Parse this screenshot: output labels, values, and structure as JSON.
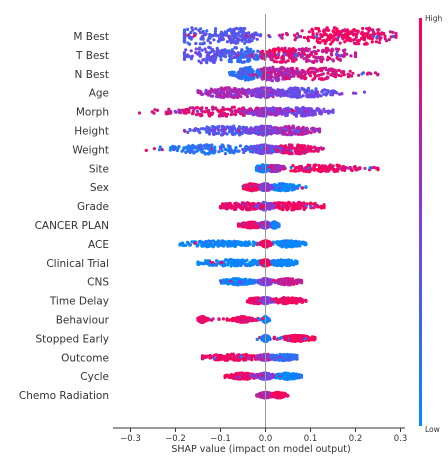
{
  "chart_data": {
    "type": "scatter",
    "subtype": "shap-beeswarm",
    "title": "",
    "xlabel": "SHAP value (impact on model output)",
    "ylabel": "",
    "xlim": [
      -0.33,
      0.31
    ],
    "xticks": [
      -0.3,
      -0.2,
      -0.1,
      0.0,
      0.1,
      0.2,
      0.3
    ],
    "xtick_labels": [
      "−0.3",
      "−0.2",
      "−0.1",
      "0.0",
      "0.1",
      "0.2",
      "0.3"
    ],
    "grid": false,
    "zero_line": true,
    "colorbar": {
      "high_label": "High",
      "low_label": "Low",
      "high_color": "#ff0052",
      "low_color": "#008bfb",
      "position": "right"
    },
    "features": [
      {
        "name": "M Best",
        "range": [
          -0.18,
          0.29
        ],
        "clusters": [
          [
            -0.15,
            0.06,
            -0.4
          ],
          [
            -0.06,
            0.025,
            -0.3
          ],
          [
            0.14,
            0.05,
            0.9
          ],
          [
            0.22,
            0.04,
            0.8
          ]
        ],
        "height": 1.0
      },
      {
        "name": "T Best",
        "range": [
          -0.18,
          0.2
        ],
        "clusters": [
          [
            -0.13,
            0.04,
            -0.2
          ],
          [
            -0.06,
            0.03,
            -0.5
          ],
          [
            0.04,
            0.03,
            0.8
          ],
          [
            0.12,
            0.05,
            0.6
          ]
        ],
        "height": 0.95
      },
      {
        "name": "N Best",
        "range": [
          -0.08,
          0.25
        ],
        "clusters": [
          [
            -0.04,
            0.015,
            -0.6
          ],
          [
            0.02,
            0.03,
            0.4
          ],
          [
            0.1,
            0.05,
            0.7
          ]
        ],
        "height": 0.8
      },
      {
        "name": "Age",
        "range": [
          -0.15,
          0.22
        ],
        "clusters": [
          [
            0.0,
            0.02,
            0.1
          ],
          [
            -0.08,
            0.04,
            0.3
          ],
          [
            0.08,
            0.04,
            -0.2
          ]
        ],
        "height": 0.55
      },
      {
        "name": "Morph",
        "range": [
          -0.28,
          0.15
        ],
        "clusters": [
          [
            0.0,
            0.025,
            0.2
          ],
          [
            -0.1,
            0.08,
            0.7
          ],
          [
            0.07,
            0.04,
            -0.1
          ]
        ],
        "height": 0.5
      },
      {
        "name": "Height",
        "range": [
          -0.18,
          0.12
        ],
        "clusters": [
          [
            0.0,
            0.02,
            0.0
          ],
          [
            -0.08,
            0.05,
            -0.3
          ],
          [
            0.06,
            0.03,
            0.4
          ]
        ],
        "height": 0.5
      },
      {
        "name": "Weight",
        "range": [
          -0.3,
          0.13
        ],
        "clusters": [
          [
            0.0,
            0.02,
            -0.1
          ],
          [
            -0.12,
            0.07,
            -0.7
          ],
          [
            0.06,
            0.03,
            0.8
          ]
        ],
        "height": 0.5
      },
      {
        "name": "Site",
        "range": [
          -0.02,
          0.25
        ],
        "clusters": [
          [
            -0.005,
            0.01,
            -0.9
          ],
          [
            0.02,
            0.01,
            0.3
          ],
          [
            0.12,
            0.06,
            0.95
          ]
        ],
        "height": 0.35
      },
      {
        "name": "Sex",
        "range": [
          -0.05,
          0.09
        ],
        "clusters": [
          [
            -0.03,
            0.01,
            0.9
          ],
          [
            0.0,
            0.008,
            0.1
          ],
          [
            0.04,
            0.02,
            -0.95
          ]
        ],
        "height": 0.35
      },
      {
        "name": "Grade",
        "range": [
          -0.1,
          0.13
        ],
        "clusters": [
          [
            -0.05,
            0.03,
            0.8
          ],
          [
            0.0,
            0.01,
            0.0
          ],
          [
            0.06,
            0.04,
            0.9
          ]
        ],
        "height": 0.4
      },
      {
        "name": "CANCER PLAN",
        "range": [
          -0.06,
          0.03
        ],
        "clusters": [
          [
            -0.03,
            0.015,
            0.9
          ],
          [
            0.0,
            0.008,
            0.0
          ],
          [
            0.02,
            0.005,
            -0.9
          ]
        ],
        "height": 0.3
      },
      {
        "name": "ACE",
        "range": [
          -0.19,
          0.09
        ],
        "clusters": [
          [
            0.0,
            0.006,
            0.95
          ],
          [
            -0.1,
            0.05,
            -0.95
          ],
          [
            0.05,
            0.02,
            -0.95
          ]
        ],
        "height": 0.3
      },
      {
        "name": "Clinical Trial",
        "range": [
          -0.15,
          0.07
        ],
        "clusters": [
          [
            0.0,
            0.006,
            0.95
          ],
          [
            -0.07,
            0.05,
            -0.95
          ],
          [
            0.04,
            0.02,
            -0.95
          ]
        ],
        "height": 0.3
      },
      {
        "name": "CNS",
        "range": [
          -0.1,
          0.08
        ],
        "clusters": [
          [
            0.0,
            0.01,
            0.0
          ],
          [
            -0.06,
            0.02,
            -0.95
          ],
          [
            0.05,
            0.015,
            0.6
          ]
        ],
        "height": 0.3
      },
      {
        "name": "Time Delay",
        "range": [
          -0.04,
          0.09
        ],
        "clusters": [
          [
            0.0,
            0.008,
            0.0
          ],
          [
            -0.02,
            0.01,
            0.9
          ],
          [
            0.05,
            0.02,
            0.9
          ]
        ],
        "height": 0.3
      },
      {
        "name": "Behaviour",
        "range": [
          -0.15,
          0.01
        ],
        "clusters": [
          [
            0.0,
            0.003,
            -0.9
          ],
          [
            -0.05,
            0.01,
            0.9
          ],
          [
            -0.14,
            0.005,
            0.9
          ]
        ],
        "height": 0.28
      },
      {
        "name": "Stopped Early",
        "range": [
          -0.03,
          0.11
        ],
        "clusters": [
          [
            0.0,
            0.004,
            -0.8
          ],
          [
            0.07,
            0.02,
            0.95
          ]
        ],
        "height": 0.28
      },
      {
        "name": "Outcome",
        "range": [
          -0.14,
          0.07
        ],
        "clusters": [
          [
            0.0,
            0.01,
            0.3
          ],
          [
            -0.07,
            0.04,
            0.95
          ],
          [
            0.04,
            0.02,
            -0.6
          ]
        ],
        "height": 0.3
      },
      {
        "name": "Cycle",
        "range": [
          -0.09,
          0.08
        ],
        "clusters": [
          [
            0.0,
            0.01,
            0.0
          ],
          [
            -0.05,
            0.02,
            0.9
          ],
          [
            0.05,
            0.015,
            -0.9
          ]
        ],
        "height": 0.3
      },
      {
        "name": "Chemo Radiation",
        "range": [
          -0.03,
          0.05
        ],
        "clusters": [
          [
            0.0,
            0.008,
            0.4
          ],
          [
            0.03,
            0.008,
            0.9
          ]
        ],
        "height": 0.25
      }
    ]
  }
}
